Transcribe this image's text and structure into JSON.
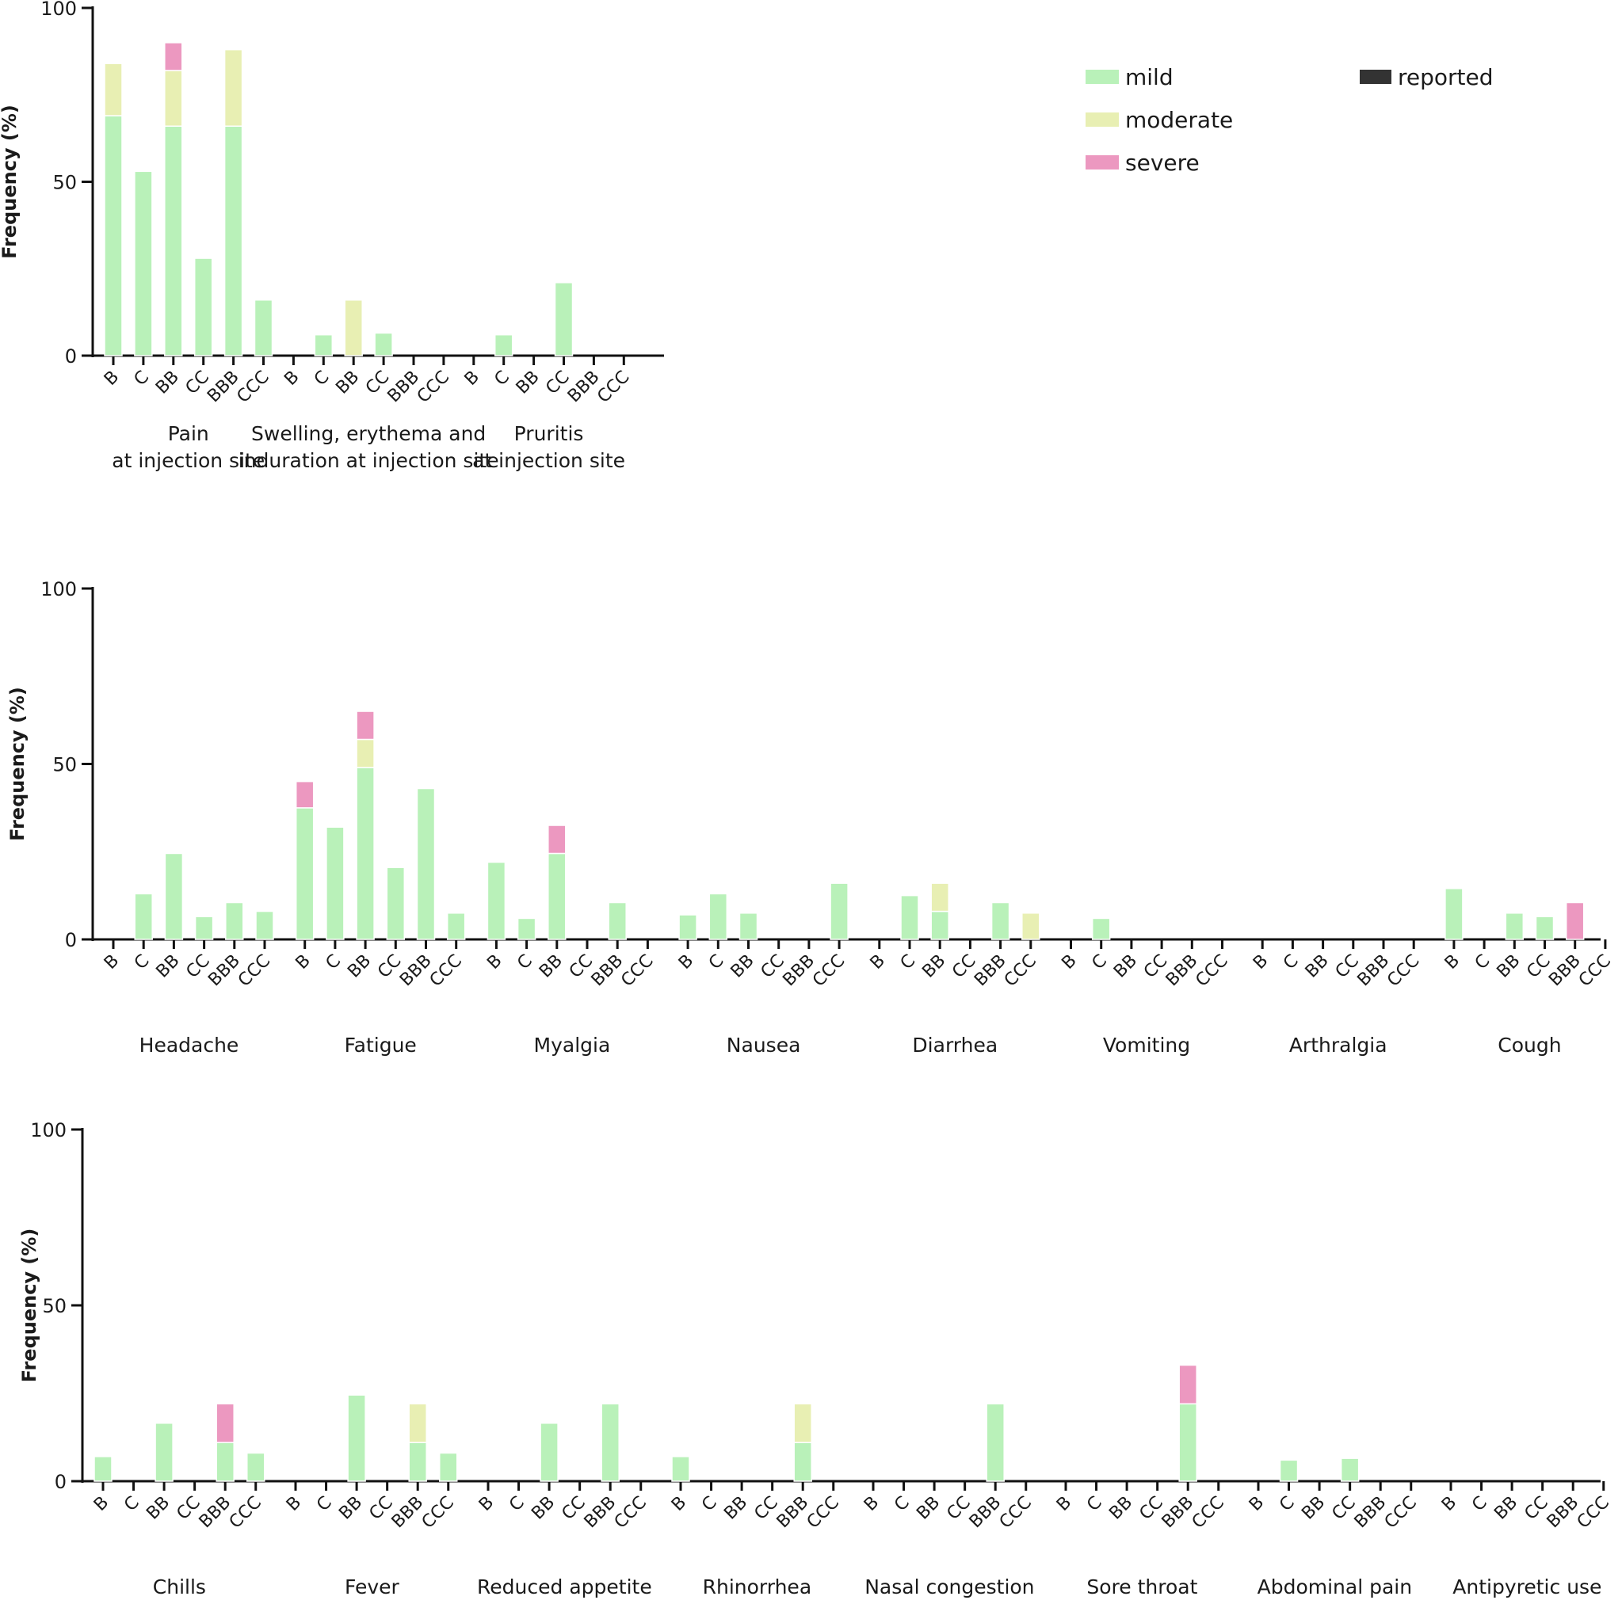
{
  "chart_data": {
    "type": "bar",
    "stacked": true,
    "colors": {
      "mild": "#b9f1b9",
      "moderate": "#e8efb3",
      "severe": "#ec98c0",
      "reported": "#333333"
    },
    "legend": {
      "position": "top-right",
      "items": [
        {
          "key": "mild",
          "label": "mild"
        },
        {
          "key": "moderate",
          "label": "moderate"
        },
        {
          "key": "severe",
          "label": "severe"
        },
        {
          "key": "reported",
          "label": "reported"
        }
      ]
    },
    "panels": [
      {
        "ylabel": "Frequency (%)",
        "ylim": [
          0,
          100
        ],
        "yticks": [
          "0",
          "50",
          "100"
        ],
        "categories": [
          "B",
          "C",
          "BB",
          "CC",
          "BBB",
          "CCC"
        ],
        "groups": [
          {
            "label": [
              "Pain",
              "at injection site"
            ],
            "bars": [
              {
                "mild": 69,
                "moderate": 15,
                "severe": 0
              },
              {
                "mild": 53,
                "moderate": 0,
                "severe": 0
              },
              {
                "mild": 66,
                "moderate": 16,
                "severe": 8
              },
              {
                "mild": 28,
                "moderate": 0,
                "severe": 0
              },
              {
                "mild": 66,
                "moderate": 22,
                "severe": 0
              },
              {
                "mild": 16,
                "moderate": 0,
                "severe": 0
              }
            ]
          },
          {
            "label": [
              "Swelling, erythema and",
              "induration at injection site"
            ],
            "bars": [
              {
                "mild": 0,
                "moderate": 0,
                "severe": 0
              },
              {
                "mild": 6,
                "moderate": 0,
                "severe": 0
              },
              {
                "mild": 0,
                "moderate": 16,
                "severe": 0
              },
              {
                "mild": 6.5,
                "moderate": 0,
                "severe": 0
              },
              {
                "mild": 0,
                "moderate": 0,
                "severe": 0
              },
              {
                "mild": 0,
                "moderate": 0,
                "severe": 0
              }
            ]
          },
          {
            "label": [
              "Pruritis",
              "at injection site"
            ],
            "bars": [
              {
                "mild": 0,
                "moderate": 0,
                "severe": 0
              },
              {
                "mild": 6,
                "moderate": 0,
                "severe": 0
              },
              {
                "mild": 0,
                "moderate": 0,
                "severe": 0
              },
              {
                "mild": 21,
                "moderate": 0,
                "severe": 0
              },
              {
                "mild": 0,
                "moderate": 0,
                "severe": 0
              },
              {
                "mild": 0,
                "moderate": 0,
                "severe": 0
              }
            ]
          }
        ]
      },
      {
        "ylabel": "Frequency (%)",
        "ylim": [
          0,
          100
        ],
        "yticks": [
          "0",
          "50",
          "100"
        ],
        "categories": [
          "B",
          "C",
          "BB",
          "CC",
          "BBB",
          "CCC"
        ],
        "groups": [
          {
            "label": [
              "Headache"
            ],
            "bars": [
              {
                "mild": 0,
                "moderate": 0,
                "severe": 0
              },
              {
                "mild": 13,
                "moderate": 0,
                "severe": 0
              },
              {
                "mild": 24.5,
                "moderate": 0,
                "severe": 0
              },
              {
                "mild": 6.5,
                "moderate": 0,
                "severe": 0
              },
              {
                "mild": 10.5,
                "moderate": 0,
                "severe": 0
              },
              {
                "mild": 8,
                "moderate": 0,
                "severe": 0
              }
            ]
          },
          {
            "label": [
              "Fatigue"
            ],
            "bars": [
              {
                "mild": 37.5,
                "moderate": 0,
                "severe": 7.5
              },
              {
                "mild": 32,
                "moderate": 0,
                "severe": 0
              },
              {
                "mild": 49,
                "moderate": 8,
                "severe": 8
              },
              {
                "mild": 20.5,
                "moderate": 0,
                "severe": 0
              },
              {
                "mild": 43,
                "moderate": 0,
                "severe": 0
              },
              {
                "mild": 7.5,
                "moderate": 0,
                "severe": 0
              }
            ]
          },
          {
            "label": [
              "Myalgia"
            ],
            "bars": [
              {
                "mild": 22,
                "moderate": 0,
                "severe": 0
              },
              {
                "mild": 6,
                "moderate": 0,
                "severe": 0
              },
              {
                "mild": 24.5,
                "moderate": 0,
                "severe": 8
              },
              {
                "mild": 0,
                "moderate": 0,
                "severe": 0
              },
              {
                "mild": 10.5,
                "moderate": 0,
                "severe": 0
              },
              {
                "mild": 0,
                "moderate": 0,
                "severe": 0
              }
            ]
          },
          {
            "label": [
              "Nausea"
            ],
            "bars": [
              {
                "mild": 7,
                "moderate": 0,
                "severe": 0
              },
              {
                "mild": 13,
                "moderate": 0,
                "severe": 0
              },
              {
                "mild": 7.5,
                "moderate": 0,
                "severe": 0
              },
              {
                "mild": 0,
                "moderate": 0,
                "severe": 0
              },
              {
                "mild": 0,
                "moderate": 0,
                "severe": 0
              },
              {
                "mild": 16,
                "moderate": 0,
                "severe": 0
              }
            ]
          },
          {
            "label": [
              "Diarrhea"
            ],
            "bars": [
              {
                "mild": 0,
                "moderate": 0,
                "severe": 0
              },
              {
                "mild": 12.5,
                "moderate": 0,
                "severe": 0
              },
              {
                "mild": 8,
                "moderate": 8,
                "severe": 0
              },
              {
                "mild": 0,
                "moderate": 0,
                "severe": 0
              },
              {
                "mild": 10.5,
                "moderate": 0,
                "severe": 0
              },
              {
                "mild": 0,
                "moderate": 7.5,
                "severe": 0
              }
            ]
          },
          {
            "label": [
              "Vomiting"
            ],
            "bars": [
              {
                "mild": 0,
                "moderate": 0,
                "severe": 0
              },
              {
                "mild": 6,
                "moderate": 0,
                "severe": 0
              },
              {
                "mild": 0,
                "moderate": 0,
                "severe": 0
              },
              {
                "mild": 0,
                "moderate": 0,
                "severe": 0
              },
              {
                "mild": 0,
                "moderate": 0,
                "severe": 0
              },
              {
                "mild": 0,
                "moderate": 0,
                "severe": 0
              }
            ]
          },
          {
            "label": [
              "Arthralgia"
            ],
            "bars": [
              {
                "mild": 0,
                "moderate": 0,
                "severe": 0
              },
              {
                "mild": 0,
                "moderate": 0,
                "severe": 0
              },
              {
                "mild": 0,
                "moderate": 0,
                "severe": 0
              },
              {
                "mild": 0,
                "moderate": 0,
                "severe": 0
              },
              {
                "mild": 0,
                "moderate": 0,
                "severe": 0
              },
              {
                "mild": 0,
                "moderate": 0,
                "severe": 0
              }
            ]
          },
          {
            "label": [
              "Cough"
            ],
            "bars": [
              {
                "mild": 14.5,
                "moderate": 0,
                "severe": 0
              },
              {
                "mild": 0,
                "moderate": 0,
                "severe": 0
              },
              {
                "mild": 7.5,
                "moderate": 0,
                "severe": 0
              },
              {
                "mild": 6.5,
                "moderate": 0,
                "severe": 0
              },
              {
                "mild": 0,
                "moderate": 0,
                "severe": 10.5
              },
              {
                "mild": 0,
                "moderate": 0,
                "severe": 0
              }
            ]
          }
        ]
      },
      {
        "ylabel": "Frequency (%)",
        "ylim": [
          0,
          100
        ],
        "yticks": [
          "0",
          "50",
          "100"
        ],
        "categories": [
          "B",
          "C",
          "BB",
          "CC",
          "BBB",
          "CCC"
        ],
        "groups": [
          {
            "label": [
              "Chills"
            ],
            "bars": [
              {
                "mild": 7,
                "moderate": 0,
                "severe": 0
              },
              {
                "mild": 0,
                "moderate": 0,
                "severe": 0
              },
              {
                "mild": 16.5,
                "moderate": 0,
                "severe": 0
              },
              {
                "mild": 0,
                "moderate": 0,
                "severe": 0
              },
              {
                "mild": 11,
                "moderate": 0,
                "severe": 11
              },
              {
                "mild": 8,
                "moderate": 0,
                "severe": 0
              }
            ]
          },
          {
            "label": [
              "Fever"
            ],
            "bars": [
              {
                "mild": 0,
                "moderate": 0,
                "severe": 0
              },
              {
                "mild": 0,
                "moderate": 0,
                "severe": 0
              },
              {
                "mild": 24.5,
                "moderate": 0,
                "severe": 0
              },
              {
                "mild": 0,
                "moderate": 0,
                "severe": 0
              },
              {
                "mild": 11,
                "moderate": 11,
                "severe": 0
              },
              {
                "mild": 8,
                "moderate": 0,
                "severe": 0
              }
            ]
          },
          {
            "label": [
              "Reduced appetite"
            ],
            "bars": [
              {
                "mild": 0,
                "moderate": 0,
                "severe": 0
              },
              {
                "mild": 0,
                "moderate": 0,
                "severe": 0
              },
              {
                "mild": 16.5,
                "moderate": 0,
                "severe": 0
              },
              {
                "mild": 0,
                "moderate": 0,
                "severe": 0
              },
              {
                "mild": 22,
                "moderate": 0,
                "severe": 0
              },
              {
                "mild": 0,
                "moderate": 0,
                "severe": 0
              }
            ]
          },
          {
            "label": [
              "Rhinorrhea"
            ],
            "bars": [
              {
                "mild": 7,
                "moderate": 0,
                "severe": 0
              },
              {
                "mild": 0,
                "moderate": 0,
                "severe": 0
              },
              {
                "mild": 0,
                "moderate": 0,
                "severe": 0
              },
              {
                "mild": 0,
                "moderate": 0,
                "severe": 0
              },
              {
                "mild": 11,
                "moderate": 11,
                "severe": 0
              },
              {
                "mild": 0,
                "moderate": 0,
                "severe": 0
              }
            ]
          },
          {
            "label": [
              "Nasal congestion"
            ],
            "bars": [
              {
                "mild": 0,
                "moderate": 0,
                "severe": 0
              },
              {
                "mild": 0,
                "moderate": 0,
                "severe": 0
              },
              {
                "mild": 0,
                "moderate": 0,
                "severe": 0
              },
              {
                "mild": 0,
                "moderate": 0,
                "severe": 0
              },
              {
                "mild": 22,
                "moderate": 0,
                "severe": 0
              },
              {
                "mild": 0,
                "moderate": 0,
                "severe": 0
              }
            ]
          },
          {
            "label": [
              "Sore throat"
            ],
            "bars": [
              {
                "mild": 0,
                "moderate": 0,
                "severe": 0
              },
              {
                "mild": 0,
                "moderate": 0,
                "severe": 0
              },
              {
                "mild": 0,
                "moderate": 0,
                "severe": 0
              },
              {
                "mild": 0,
                "moderate": 0,
                "severe": 0
              },
              {
                "mild": 22,
                "moderate": 0,
                "severe": 11
              },
              {
                "mild": 0,
                "moderate": 0,
                "severe": 0
              }
            ]
          },
          {
            "label": [
              "Abdominal pain"
            ],
            "bars": [
              {
                "mild": 0,
                "moderate": 0,
                "severe": 0
              },
              {
                "mild": 6,
                "moderate": 0,
                "severe": 0
              },
              {
                "mild": 0,
                "moderate": 0,
                "severe": 0
              },
              {
                "mild": 6.5,
                "moderate": 0,
                "severe": 0
              },
              {
                "mild": 0,
                "moderate": 0,
                "severe": 0
              },
              {
                "mild": 0,
                "moderate": 0,
                "severe": 0
              }
            ]
          },
          {
            "label": [
              "Antipyretic use"
            ],
            "bars": [
              {
                "mild": 0,
                "moderate": 0,
                "severe": 0
              },
              {
                "mild": 0,
                "moderate": 0,
                "severe": 0
              },
              {
                "mild": 0,
                "moderate": 0,
                "severe": 0
              },
              {
                "mild": 0,
                "moderate": 0,
                "severe": 0
              },
              {
                "mild": 0,
                "moderate": 0,
                "severe": 0
              },
              {
                "mild": 0,
                "moderate": 0,
                "severe": 0
              }
            ]
          }
        ]
      }
    ]
  }
}
